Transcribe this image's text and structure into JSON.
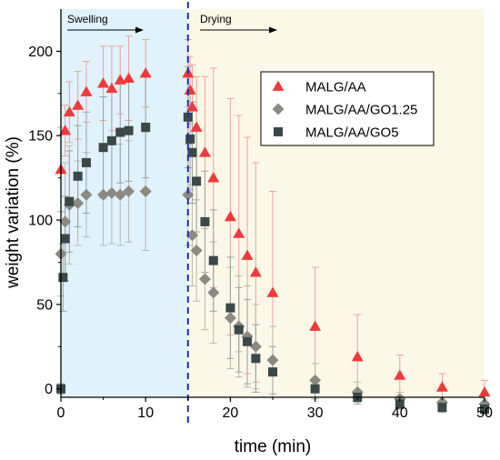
{
  "chart_data": {
    "type": "scatter",
    "xlabel": "time (min)",
    "ylabel": "weight variation (%)",
    "xlim": [
      0,
      50
    ],
    "ylim": [
      -5,
      225
    ],
    "x_ticks": [
      0,
      10,
      20,
      30,
      40,
      50
    ],
    "y_ticks": [
      0,
      50,
      100,
      150,
      200
    ],
    "grid": false,
    "legend_position": "top-right",
    "divider_x": 15,
    "regions": [
      {
        "name": "swelling",
        "label": "Swelling",
        "x_start": 0,
        "x_end": 15,
        "color": "#e0f2fc"
      },
      {
        "name": "drying",
        "label": "Drying",
        "x_start": 15,
        "x_end": 50,
        "color": "#fbf8e8"
      }
    ],
    "series": [
      {
        "name": "MALG/AA",
        "marker": "triangle",
        "color": "#ee3a3a",
        "error_color": "#f0a0a0",
        "points": [
          {
            "x": 0,
            "y": 130,
            "err": 25
          },
          {
            "x": 0.5,
            "y": 153,
            "err": 15
          },
          {
            "x": 1,
            "y": 164,
            "err": 18
          },
          {
            "x": 2,
            "y": 168,
            "err": 20
          },
          {
            "x": 3,
            "y": 176,
            "err": 18
          },
          {
            "x": 5,
            "y": 181,
            "err": 22
          },
          {
            "x": 6,
            "y": 178,
            "err": 25
          },
          {
            "x": 7,
            "y": 183,
            "err": 20
          },
          {
            "x": 8,
            "y": 184,
            "err": 25
          },
          {
            "x": 10,
            "y": 187,
            "err": 20
          },
          {
            "x": 15,
            "y": 187,
            "err": 20
          },
          {
            "x": 15.25,
            "y": 177,
            "err": 20
          },
          {
            "x": 15.5,
            "y": 167,
            "err": 25
          },
          {
            "x": 16,
            "y": 155,
            "err": 30
          },
          {
            "x": 17,
            "y": 140,
            "err": 45
          },
          {
            "x": 18,
            "y": 125,
            "err": 65
          },
          {
            "x": 20,
            "y": 102,
            "err": 70
          },
          {
            "x": 21,
            "y": 92,
            "err": 70
          },
          {
            "x": 22,
            "y": 79,
            "err": 70
          },
          {
            "x": 23,
            "y": 69,
            "err": 65
          },
          {
            "x": 25,
            "y": 57,
            "err": 60
          },
          {
            "x": 30,
            "y": 37,
            "err": 35
          },
          {
            "x": 35,
            "y": 19,
            "err": 25
          },
          {
            "x": 40,
            "y": 8,
            "err": 12
          },
          {
            "x": 45,
            "y": 1,
            "err": 8
          },
          {
            "x": 50,
            "y": -2,
            "err": 7
          }
        ]
      },
      {
        "name": "MALG/AA/GO1.25",
        "marker": "diamond",
        "color": "#8a8a82",
        "error_color": "#b8b8b0",
        "points": [
          {
            "x": 0,
            "y": 80,
            "err": 25
          },
          {
            "x": 0.5,
            "y": 99,
            "err": 35
          },
          {
            "x": 1,
            "y": 109,
            "err": 35
          },
          {
            "x": 2,
            "y": 110,
            "err": 25
          },
          {
            "x": 3,
            "y": 115,
            "err": 25
          },
          {
            "x": 5,
            "y": 115,
            "err": 30
          },
          {
            "x": 6,
            "y": 116,
            "err": 30
          },
          {
            "x": 7,
            "y": 115,
            "err": 30
          },
          {
            "x": 8,
            "y": 117,
            "err": 30
          },
          {
            "x": 10,
            "y": 117,
            "err": 35
          },
          {
            "x": 15,
            "y": 115,
            "err": 30
          },
          {
            "x": 15.5,
            "y": 91,
            "err": 30
          },
          {
            "x": 16,
            "y": 82,
            "err": 30
          },
          {
            "x": 17,
            "y": 65,
            "err": 30
          },
          {
            "x": 18,
            "y": 57,
            "err": 30
          },
          {
            "x": 20,
            "y": 42,
            "err": 30
          },
          {
            "x": 21,
            "y": 37,
            "err": 30
          },
          {
            "x": 22,
            "y": 31,
            "err": 30
          },
          {
            "x": 23,
            "y": 25,
            "err": 25
          },
          {
            "x": 25,
            "y": 17,
            "err": 20
          },
          {
            "x": 30,
            "y": 5,
            "err": 10
          },
          {
            "x": 35,
            "y": -2,
            "err": 6
          },
          {
            "x": 40,
            "y": -6,
            "err": 4
          },
          {
            "x": 45,
            "y": -8,
            "err": 3
          },
          {
            "x": 50,
            "y": -9,
            "err": 3
          }
        ]
      },
      {
        "name": "MALG/AA/GO5",
        "marker": "square",
        "color": "#3b4848",
        "error_color": "#9aa2a2",
        "points": [
          {
            "x": 0,
            "y": 0,
            "err": 3
          },
          {
            "x": 0.25,
            "y": 66,
            "err": 20
          },
          {
            "x": 0.5,
            "y": 89,
            "err": 25
          },
          {
            "x": 1,
            "y": 111,
            "err": 30
          },
          {
            "x": 2,
            "y": 126,
            "err": 30
          },
          {
            "x": 3,
            "y": 134,
            "err": 30
          },
          {
            "x": 5,
            "y": 143,
            "err": 30
          },
          {
            "x": 6,
            "y": 147,
            "err": 30
          },
          {
            "x": 7,
            "y": 152,
            "err": 30
          },
          {
            "x": 8,
            "y": 153,
            "err": 30
          },
          {
            "x": 10,
            "y": 155,
            "err": 30
          },
          {
            "x": 15,
            "y": 161,
            "err": 30
          },
          {
            "x": 15.25,
            "y": 148,
            "err": 30
          },
          {
            "x": 15.5,
            "y": 140,
            "err": 30
          },
          {
            "x": 16,
            "y": 123,
            "err": 30
          },
          {
            "x": 17,
            "y": 99,
            "err": 30
          },
          {
            "x": 18,
            "y": 76,
            "err": 30
          },
          {
            "x": 20,
            "y": 48,
            "err": 30
          },
          {
            "x": 21,
            "y": 35,
            "err": 25
          },
          {
            "x": 22,
            "y": 28,
            "err": 25
          },
          {
            "x": 23,
            "y": 18,
            "err": 20
          },
          {
            "x": 25,
            "y": 10,
            "err": 15
          },
          {
            "x": 30,
            "y": 0,
            "err": 6
          },
          {
            "x": 35,
            "y": -5,
            "err": 4
          },
          {
            "x": 40,
            "y": -9,
            "err": 3
          },
          {
            "x": 45,
            "y": -11,
            "err": 3
          },
          {
            "x": 50,
            "y": -12,
            "err": 3
          }
        ]
      }
    ]
  }
}
